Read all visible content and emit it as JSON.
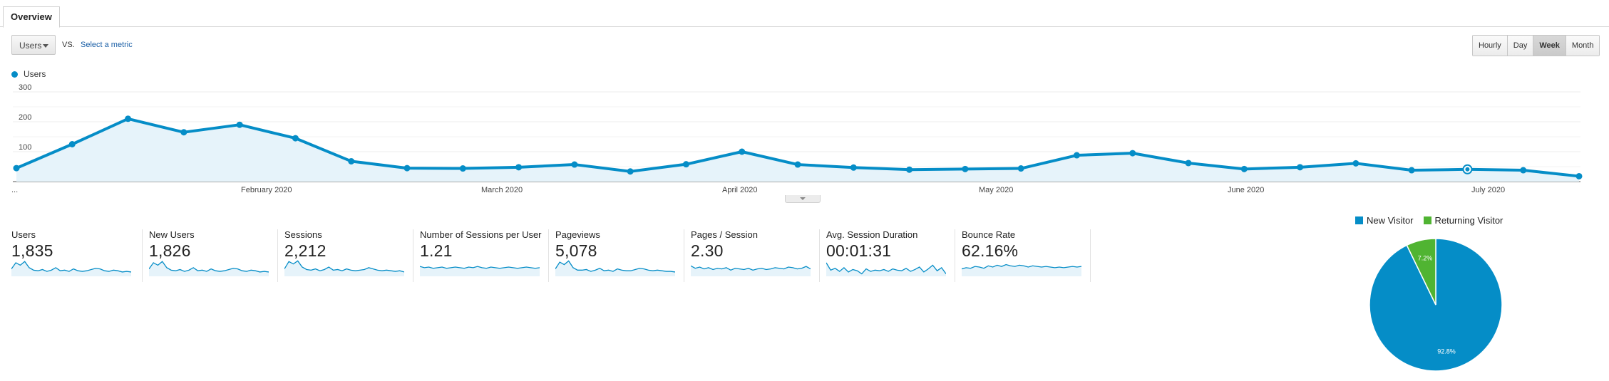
{
  "tabs": [
    {
      "label": "Overview"
    }
  ],
  "toolbar": {
    "metric_select": "Users",
    "vs_label": "VS.",
    "select_metric_link": "Select a metric",
    "periods": [
      "Hourly",
      "Day",
      "Week",
      "Month"
    ],
    "active_period": "Week"
  },
  "colors": {
    "series": "#058dc7",
    "new_visitor": "#058dc7",
    "returning_visitor": "#50b432",
    "area_fill": "#e6f3fa"
  },
  "chart_data": [
    {
      "type": "line",
      "series": [
        {
          "name": "Users",
          "values": [
            45,
            125,
            210,
            165,
            190,
            145,
            68,
            45,
            44,
            48,
            57,
            34,
            58,
            100,
            57,
            47,
            40,
            42,
            44,
            88,
            95,
            62,
            42,
            48,
            61,
            38,
            41,
            38,
            18
          ]
        }
      ],
      "x_labels": [
        "...",
        "February 2020",
        "March 2020",
        "April 2020",
        "May 2020",
        "June 2020",
        "July 2020"
      ],
      "y_ticks": [
        100,
        200,
        300
      ],
      "ylim": [
        0,
        300
      ],
      "highlighted_point_index": 26,
      "grid": true,
      "area_fill": true
    },
    {
      "type": "pie",
      "categories": [
        "New Visitor",
        "Returning Visitor"
      ],
      "values": [
        92.8,
        7.2
      ],
      "slice_labels": [
        "92.8%",
        "7.2%"
      ],
      "legend_position": "top"
    }
  ],
  "metrics": [
    {
      "label": "Users",
      "value": "1,835",
      "spark": [
        12,
        22,
        18,
        24,
        14,
        10,
        9,
        11,
        8,
        10,
        14,
        9,
        10,
        8,
        12,
        9,
        8,
        9,
        11,
        13,
        12,
        9,
        8,
        10,
        9,
        7,
        8,
        7
      ]
    },
    {
      "label": "New Users",
      "value": "1,826",
      "spark": [
        12,
        22,
        18,
        24,
        14,
        10,
        9,
        11,
        8,
        10,
        14,
        9,
        10,
        8,
        12,
        9,
        8,
        9,
        11,
        13,
        12,
        9,
        8,
        10,
        9,
        7,
        8,
        7
      ]
    },
    {
      "label": "Sessions",
      "value": "2,212",
      "spark": [
        12,
        24,
        20,
        25,
        15,
        11,
        10,
        12,
        9,
        11,
        15,
        10,
        11,
        9,
        12,
        10,
        9,
        10,
        11,
        14,
        12,
        10,
        9,
        10,
        9,
        8,
        9,
        7
      ]
    },
    {
      "label": "Number of Sessions per User",
      "value": "1.21",
      "spark": [
        16,
        14,
        15,
        13,
        14,
        15,
        13,
        14,
        15,
        14,
        13,
        15,
        14,
        16,
        14,
        13,
        15,
        14,
        13,
        14,
        15,
        14,
        13,
        14,
        15,
        14,
        13,
        14
      ]
    },
    {
      "label": "Pageviews",
      "value": "5,078",
      "spark": [
        12,
        23,
        19,
        25,
        14,
        10,
        10,
        11,
        8,
        10,
        13,
        9,
        10,
        8,
        12,
        10,
        9,
        9,
        11,
        13,
        12,
        10,
        9,
        10,
        9,
        8,
        8,
        7
      ]
    },
    {
      "label": "Pages / Session",
      "value": "2.30",
      "spark": [
        17,
        13,
        15,
        12,
        14,
        11,
        13,
        12,
        14,
        10,
        13,
        12,
        11,
        13,
        10,
        12,
        13,
        11,
        12,
        14,
        13,
        12,
        15,
        14,
        12,
        13,
        16,
        12
      ]
    },
    {
      "label": "Avg. Session Duration",
      "value": "00:01:31",
      "spark": [
        22,
        10,
        13,
        8,
        14,
        7,
        11,
        9,
        4,
        12,
        8,
        10,
        9,
        11,
        8,
        12,
        10,
        9,
        13,
        8,
        11,
        15,
        7,
        12,
        18,
        9,
        14,
        4
      ]
    },
    {
      "label": "Bounce Rate",
      "value": "62.16%",
      "spark": [
        12,
        14,
        13,
        16,
        15,
        13,
        17,
        15,
        18,
        16,
        19,
        17,
        16,
        18,
        17,
        15,
        17,
        16,
        15,
        16,
        15,
        14,
        15,
        14,
        15,
        16,
        15,
        16
      ]
    }
  ]
}
